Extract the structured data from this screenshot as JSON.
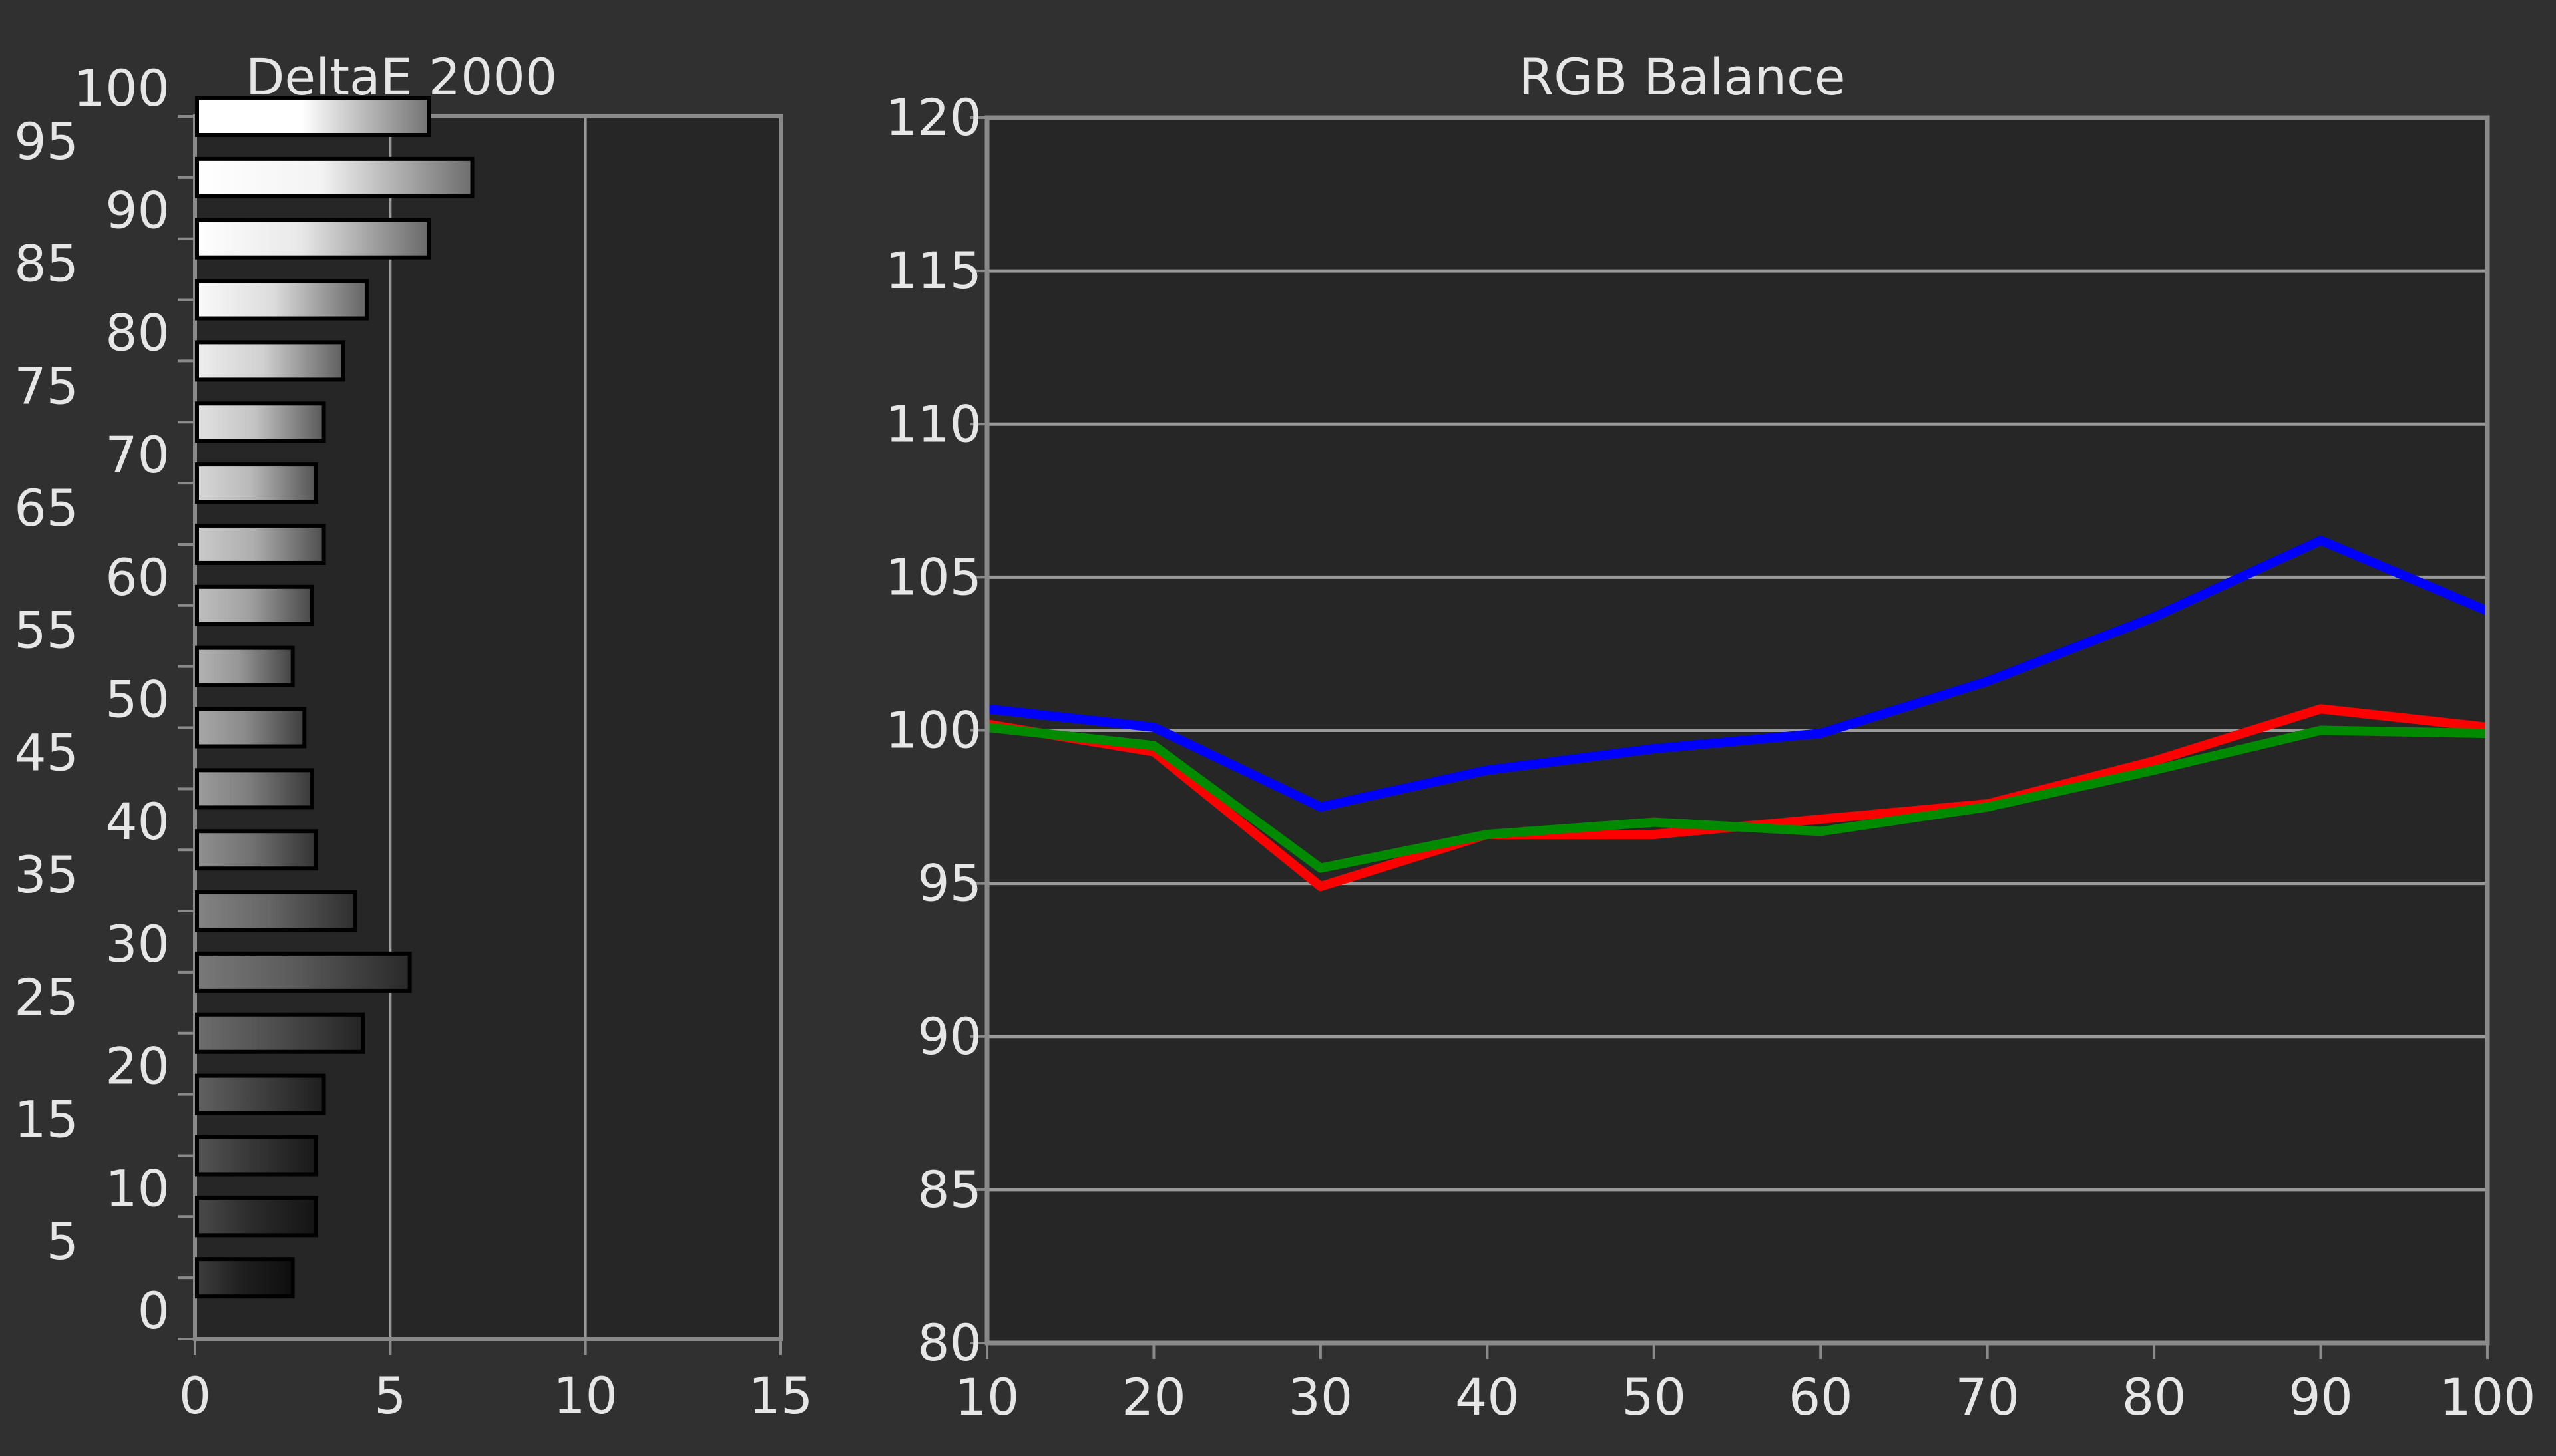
{
  "colors": {
    "background": "#303030",
    "plot_background": "#262626",
    "frame": "#8a8a8a",
    "gridline": "#9a9a9a",
    "text": "#e6e6e6",
    "red": "#ff0000",
    "green": "#008a00",
    "blue": "#0000ff"
  },
  "chart_data": [
    {
      "type": "bar",
      "orientation": "horizontal",
      "title": "DeltaE 2000",
      "categories": [
        5,
        10,
        15,
        20,
        25,
        30,
        35,
        40,
        45,
        50,
        55,
        60,
        65,
        70,
        75,
        80,
        85,
        90,
        95,
        100
      ],
      "values": [
        2.5,
        3.1,
        3.1,
        3.3,
        4.3,
        5.5,
        4.1,
        3.1,
        3.0,
        2.8,
        2.5,
        3.0,
        3.3,
        3.1,
        3.3,
        3.8,
        4.4,
        6.0,
        7.1,
        6.0
      ],
      "category_range": [
        0,
        100
      ],
      "category_tick_labels": [
        "0",
        "5",
        "10",
        "15",
        "20",
        "25",
        "30",
        "35",
        "40",
        "45",
        "50",
        "55",
        "60",
        "65",
        "70",
        "75",
        "80",
        "85",
        "90",
        "95",
        "100"
      ],
      "xlim": [
        0,
        15
      ],
      "x_ticks": [
        0,
        5,
        10,
        15
      ],
      "x_tick_labels": [
        "0",
        "5",
        "10",
        "15"
      ],
      "vertical_gridlines": [
        5,
        10
      ],
      "bar_fill": "grayscale gradient matching the stimulus level"
    },
    {
      "type": "line",
      "title": "RGB Balance",
      "x": [
        10,
        20,
        30,
        40,
        50,
        60,
        70,
        80,
        90,
        100
      ],
      "series": [
        {
          "color": "#ff0000",
          "values": [
            100.2,
            99.3,
            94.9,
            96.6,
            96.6,
            97.1,
            97.6,
            99.0,
            100.7,
            100.1
          ]
        },
        {
          "color": "#008a00",
          "values": [
            100.1,
            99.5,
            95.5,
            96.6,
            97.0,
            96.7,
            97.5,
            98.7,
            100.0,
            99.9
          ]
        },
        {
          "color": "#0000ff",
          "values": [
            100.7,
            100.1,
            97.5,
            98.7,
            99.4,
            99.9,
            101.6,
            103.7,
            106.2,
            103.9
          ]
        }
      ],
      "xlim": [
        10,
        100
      ],
      "ylim": [
        80,
        120
      ],
      "x_tick_labels": [
        "10",
        "20",
        "30",
        "40",
        "50",
        "60",
        "70",
        "80",
        "90",
        "100"
      ],
      "y_tick_labels": [
        "80",
        "85",
        "90",
        "95",
        "100",
        "105",
        "110",
        "115",
        "120"
      ],
      "grid": "horizontal"
    }
  ]
}
